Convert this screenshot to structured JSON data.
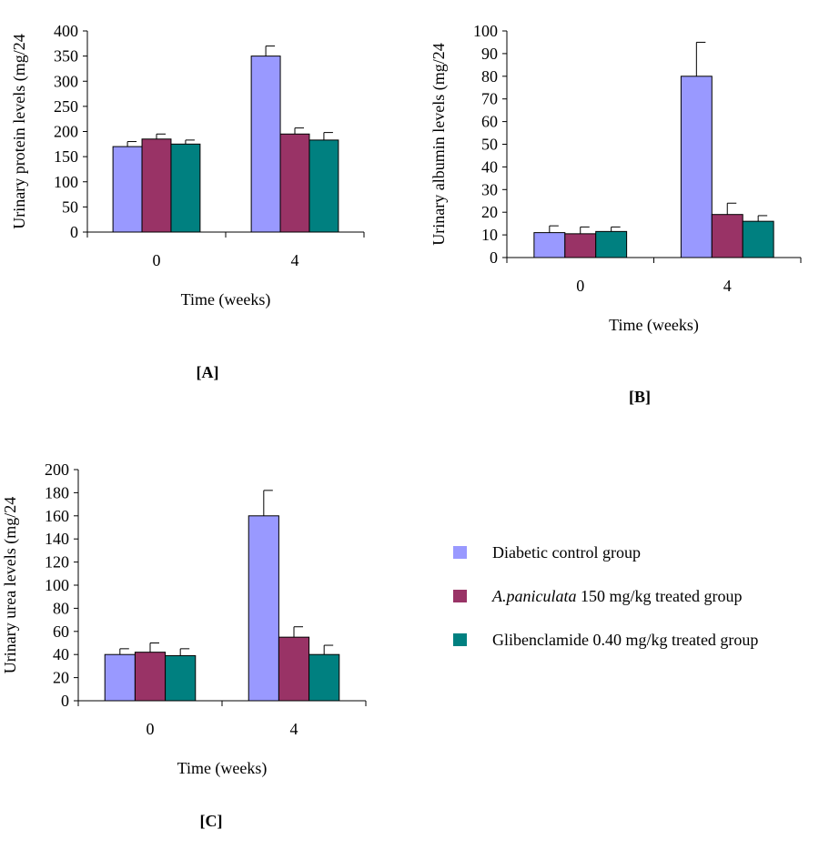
{
  "colors": {
    "diabetic": "#9999ff",
    "paniculata": "#993366",
    "gliben": "#008080"
  },
  "legend": {
    "diabetic": "Diabetic control group",
    "paniculata_species": "A.paniculata",
    "paniculata_rest": " 150 mg/kg treated group",
    "gliben": "Glibenclamide 0.40 mg/kg treated group"
  },
  "chart_data": [
    {
      "type": "bar",
      "panel_label": "[A]",
      "ylabel": "Urinary protein levels (mg/24",
      "xlabel": "Time (weeks)",
      "categories": [
        "0",
        "4"
      ],
      "ylim": [
        0,
        400
      ],
      "yticks": [
        0,
        50,
        100,
        150,
        200,
        250,
        300,
        350,
        400
      ],
      "series": [
        {
          "name": "Diabetic control group",
          "values": [
            170,
            350
          ],
          "errors": [
            10,
            20
          ]
        },
        {
          "name": "A.paniculata 150 mg/kg treated group",
          "values": [
            185,
            195
          ],
          "errors": [
            10,
            12
          ]
        },
        {
          "name": "Glibenclamide 0.40 mg/kg treated group",
          "values": [
            175,
            183
          ],
          "errors": [
            8,
            15
          ]
        }
      ]
    },
    {
      "type": "bar",
      "panel_label": "[B]",
      "ylabel": "Urinary albumin levels (mg/24",
      "xlabel": "Time (weeks)",
      "categories": [
        "0",
        "4"
      ],
      "ylim": [
        0,
        100
      ],
      "yticks": [
        0,
        10,
        20,
        30,
        40,
        50,
        60,
        70,
        80,
        90,
        100
      ],
      "series": [
        {
          "name": "Diabetic control group",
          "values": [
            11,
            80
          ],
          "errors": [
            3,
            15
          ]
        },
        {
          "name": "A.paniculata 150 mg/kg treated group",
          "values": [
            10.5,
            19
          ],
          "errors": [
            3,
            5
          ]
        },
        {
          "name": "Glibenclamide 0.40 mg/kg treated group",
          "values": [
            11.5,
            16
          ],
          "errors": [
            2,
            2.5
          ]
        }
      ]
    },
    {
      "type": "bar",
      "panel_label": "[C]",
      "ylabel": "Urinary urea levels (mg/24",
      "xlabel": "Time (weeks)",
      "categories": [
        "0",
        "4"
      ],
      "ylim": [
        0,
        200
      ],
      "yticks": [
        0,
        20,
        40,
        60,
        80,
        100,
        120,
        140,
        160,
        180,
        200
      ],
      "series": [
        {
          "name": "Diabetic control group",
          "values": [
            40,
            160
          ],
          "errors": [
            5,
            22
          ]
        },
        {
          "name": "A.paniculata 150 mg/kg treated group",
          "values": [
            42,
            55
          ],
          "errors": [
            8,
            9
          ]
        },
        {
          "name": "Glibenclamide 0.40 mg/kg treated group",
          "values": [
            39,
            40
          ],
          "errors": [
            6,
            8
          ]
        }
      ]
    }
  ]
}
